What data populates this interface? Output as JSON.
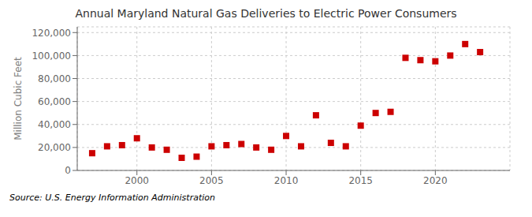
{
  "chart_data": {
    "type": "scatter",
    "title": "Annual Maryland Natural Gas Deliveries to Electric Power Consumers",
    "y_label": "Million Cubic Feet",
    "annotations": [
      "Source: U.S. Energy Information Administration"
    ],
    "x": [
      1997,
      1998,
      1999,
      2000,
      2001,
      2002,
      2003,
      2004,
      2005,
      2006,
      2007,
      2008,
      2009,
      2010,
      2011,
      2012,
      2013,
      2014,
      2015,
      2016,
      2017,
      2018,
      2019,
      2020,
      2021,
      2022,
      2023
    ],
    "values": [
      15000,
      21000,
      22000,
      28000,
      20000,
      18000,
      11000,
      12000,
      21000,
      22000,
      23000,
      20000,
      18000,
      30000,
      21000,
      48000,
      24000,
      21000,
      39000,
      50000,
      51000,
      98000,
      96000,
      95000,
      100000,
      110000,
      103000
    ],
    "color": "#cc0000",
    "marker": "square",
    "xlim": [
      1996,
      2025
    ],
    "xticks": [
      2000,
      2005,
      2010,
      2015,
      2020
    ],
    "ylim": [
      0,
      125000
    ],
    "yticks": [
      0,
      {
        "value": 20000,
        "label": "20,000"
      },
      {
        "value": 40000,
        "label": "40,000"
      },
      {
        "value": 60000,
        "label": "60,000"
      },
      {
        "value": 80000,
        "label": "80,000"
      },
      {
        "value": 100000,
        "label": "100,000"
      },
      {
        "value": 120000,
        "label": "120,000"
      }
    ],
    "grid": true
  }
}
